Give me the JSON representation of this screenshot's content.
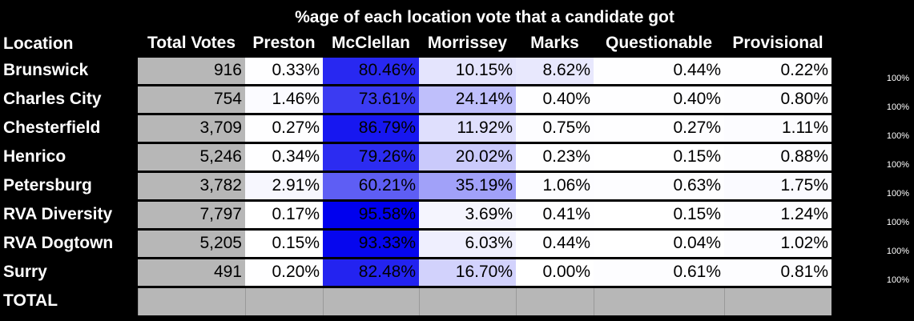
{
  "title": "%age of each location vote that a candidate got",
  "headers": [
    "Location",
    "Total Votes",
    "Preston",
    "McClellan",
    "Morrissey",
    "Marks",
    "Questionable",
    "Provisional"
  ],
  "rows": [
    {
      "location": "Brunswick",
      "total": "916",
      "preston": "0.33%",
      "mcclellan": "80.46%",
      "morrissey": "10.15%",
      "marks": "8.62%",
      "questionable": "0.44%",
      "provisional": "0.22%",
      "check": "100%"
    },
    {
      "location": "Charles City",
      "total": "754",
      "preston": "1.46%",
      "mcclellan": "73.61%",
      "morrissey": "24.14%",
      "marks": "0.40%",
      "questionable": "0.40%",
      "provisional": "0.80%",
      "check": "100%"
    },
    {
      "location": "Chesterfield",
      "total": "3,709",
      "preston": "0.27%",
      "mcclellan": "86.79%",
      "morrissey": "11.92%",
      "marks": "0.75%",
      "questionable": "0.27%",
      "provisional": "1.11%",
      "check": "100%"
    },
    {
      "location": "Henrico",
      "total": "5,246",
      "preston": "0.34%",
      "mcclellan": "79.26%",
      "morrissey": "20.02%",
      "marks": "0.23%",
      "questionable": "0.15%",
      "provisional": "0.88%",
      "check": "100%"
    },
    {
      "location": "Petersburg",
      "total": "3,782",
      "preston": "2.91%",
      "mcclellan": "60.21%",
      "morrissey": "35.19%",
      "marks": "1.06%",
      "questionable": "0.63%",
      "provisional": "1.75%",
      "check": "100%"
    },
    {
      "location": "RVA Diversity",
      "total": "7,797",
      "preston": "0.17%",
      "mcclellan": "95.58%",
      "morrissey": "3.69%",
      "marks": "0.41%",
      "questionable": "0.15%",
      "provisional": "1.24%",
      "check": "100%"
    },
    {
      "location": "RVA Dogtown",
      "total": "5,205",
      "preston": "0.15%",
      "mcclellan": "93.33%",
      "morrissey": "6.03%",
      "marks": "0.44%",
      "questionable": "0.04%",
      "provisional": "1.02%",
      "check": "100%"
    },
    {
      "location": "Surry",
      "total": "491",
      "preston": "0.20%",
      "mcclellan": "82.48%",
      "morrissey": "16.70%",
      "marks": "0.00%",
      "questionable": "0.61%",
      "provisional": "0.81%",
      "check": "100%"
    }
  ],
  "total_row": {
    "location": "TOTAL"
  },
  "colors": {
    "background": "#000000",
    "total_votes_fill": "#b7b7b7",
    "heat_base": "#ffffff",
    "heat_max": "#0000ee"
  }
}
